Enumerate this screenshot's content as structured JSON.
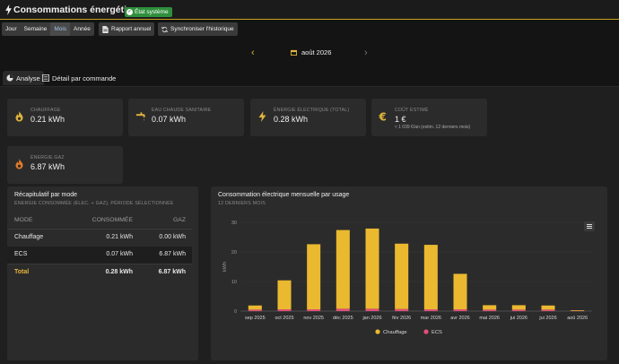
{
  "header": {
    "title": "Consommations énergétiques",
    "badge": "État système"
  },
  "toolbar": {
    "periods": [
      "Jour",
      "Semaine",
      "Mois",
      "Année"
    ],
    "active_period": "Mois",
    "report_label": "Rapport annuel",
    "sync_label": "Synchroniser l'historique"
  },
  "month_nav": {
    "label": "août 2026",
    "prev_icon": "chevron-left-icon",
    "next_icon": "chevron-right-icon"
  },
  "tabs": [
    {
      "label": "Analyse",
      "icon": "pie-chart-icon",
      "active": true
    },
    {
      "label": "Détail par commande",
      "icon": "list-icon",
      "active": false
    }
  ],
  "kpis": [
    {
      "label": "CHAUFFAGE",
      "value": "0.21 kWh",
      "icon": "flame-icon"
    },
    {
      "label": "EAU CHAUDE SANITAIRE",
      "value": "0.07 kWh",
      "icon": "tap-icon"
    },
    {
      "label": "ÉNERGIE ÉLECTRIQUE (TOTAL)",
      "value": "0.28 kWh",
      "icon": "bolt-icon"
    },
    {
      "label": "COÛT ESTIMÉ",
      "value": "1 €",
      "sub": "≈ 1 039 €/an (estim. 12 derniers mois)",
      "icon": "euro-icon"
    },
    {
      "label": "ÉNERGIE GAZ",
      "value": "6.87 kWh",
      "icon": "gas-flame-icon"
    }
  ],
  "recap": {
    "title": "Récapitulatif par mode",
    "subtitle": "ÉNERGIE CONSOMMÉE (ÉLEC. + GAZ), PÉRIODE SÉLECTIONNÉE",
    "headers": [
      "MODE",
      "CONSOMMÉE",
      "GAZ"
    ],
    "rows": [
      {
        "mode": "Chauffage",
        "consumed": "0.21 kWh",
        "gas": "0.00 kWh"
      },
      {
        "mode": "ECS",
        "consumed": "0.07 kWh",
        "gas": "6.87 kWh"
      },
      {
        "mode": "Total",
        "consumed": "0.28 kWh",
        "gas": "6.87 kWh"
      }
    ]
  },
  "chart_panel": {
    "title": "Consommation électrique mensuelle par usage",
    "subtitle": "12 DERNIERS MOIS",
    "menu_icon": "hamburger-menu-icon"
  },
  "colors": {
    "accent": "#e0b43a",
    "chauffage": "#eab92f",
    "ecs": "#e0507a",
    "badge": "#2f8f3d"
  },
  "chart_data": {
    "type": "bar",
    "stacked": true,
    "title": "Consommation électrique mensuelle par usage",
    "subtitle": "12 DERNIERS MOIS",
    "ylabel": "kWh",
    "xlabel": "",
    "ylim": [
      0,
      30
    ],
    "yticks": [
      0,
      10,
      20,
      30
    ],
    "grid": true,
    "legend": "bottom",
    "categories": [
      "sep 2025",
      "oct 2025",
      "nov 2025",
      "déc 2025",
      "jan 2026",
      "fév 2026",
      "mar 2026",
      "avr 2026",
      "mai 2026",
      "jui 2026",
      "jui 2026",
      "aoû 2026"
    ],
    "series": [
      {
        "name": "Chauffage",
        "color": "#eab92f",
        "values": [
          1.4,
          9.8,
          22.0,
          26.6,
          27.1,
          22.1,
          21.8,
          12.0,
          1.5,
          1.5,
          1.4,
          0.2
        ]
      },
      {
        "name": "ECS",
        "color": "#e0507a",
        "values": [
          0.5,
          0.6,
          0.6,
          0.8,
          0.8,
          0.7,
          0.6,
          0.6,
          0.5,
          0.5,
          0.5,
          0.1
        ]
      }
    ]
  }
}
